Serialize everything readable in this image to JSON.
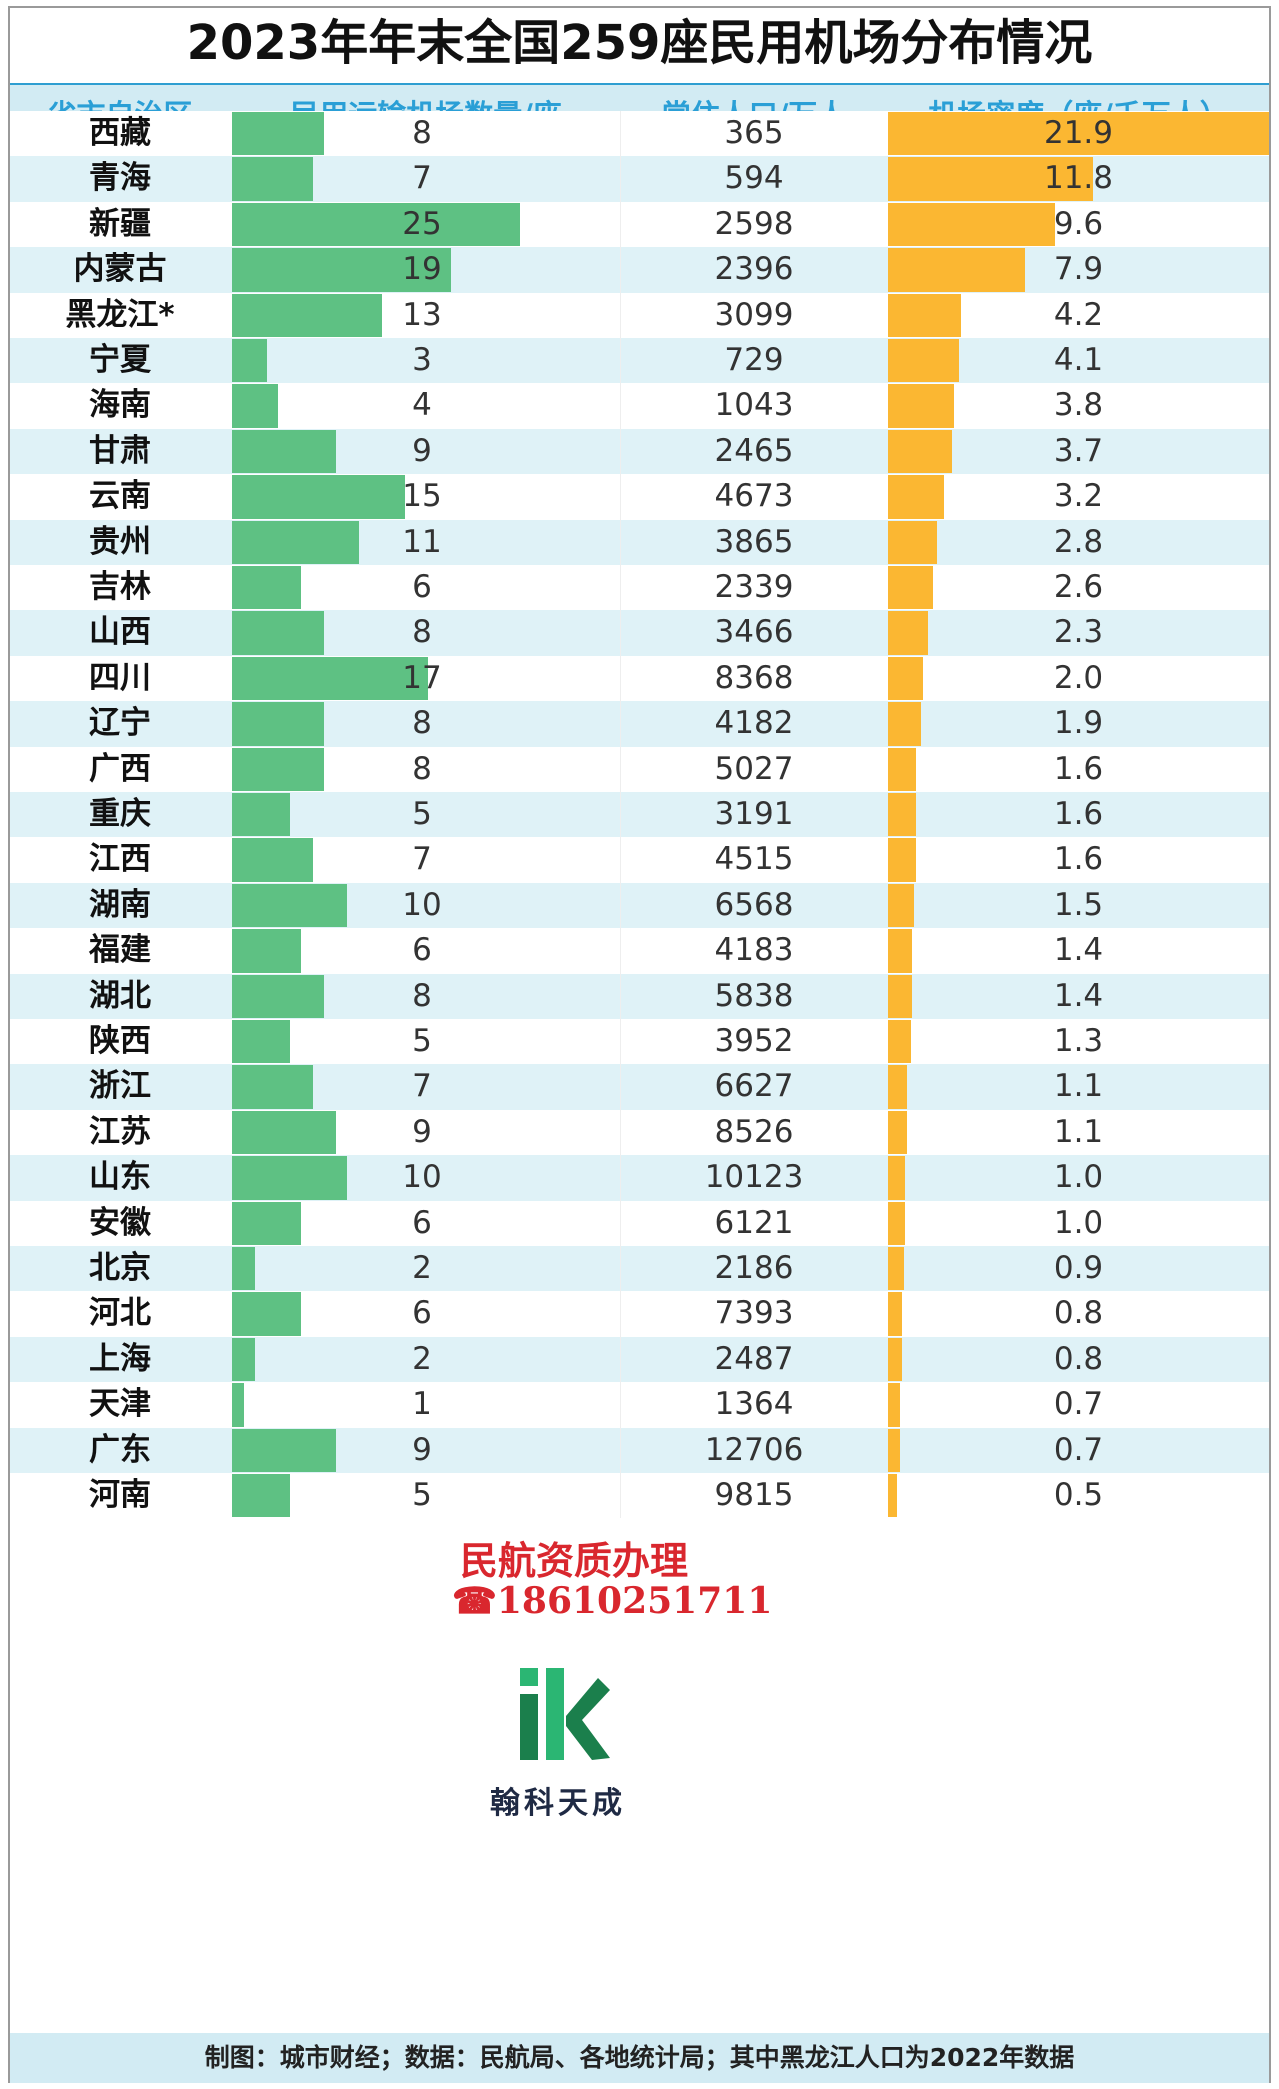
{
  "title": "2023年年末全国259座民用机场分布情况",
  "header": {
    "col1": "省市自治区",
    "col2": "民用运输机场数量/座",
    "col3": "常住人口/万人",
    "col4": "机场密度（座/千万人）"
  },
  "footer": "制图：城市财经；数据：民航局、各地统计局；其中黑龙江人口为2022年数据",
  "watermark": {
    "line1": "民航资质办理",
    "phone": "18610251711",
    "phone_icon": "phone-icon",
    "logo_text": "翰科天成"
  },
  "colors": {
    "green_bar": "#5ec183",
    "orange_bar": "#fbb732",
    "header_text": "#2a9fd6",
    "header_bg": "#d2ebf3",
    "row_alt_bg": "#dff2f7",
    "watermark_red": "#d9272e"
  },
  "chart_data": {
    "type": "table",
    "columns": [
      "省市自治区",
      "民用运输机场数量/座",
      "常住人口/万人",
      "机场密度（座/千万人）"
    ],
    "airport_count_max": 25,
    "density_max": 21.9,
    "rows": [
      {
        "province": "西藏",
        "airports": 8,
        "population": 365,
        "density": 21.9
      },
      {
        "province": "青海",
        "airports": 7,
        "population": 594,
        "density": 11.8
      },
      {
        "province": "新疆",
        "airports": 25,
        "population": 2598,
        "density": 9.6
      },
      {
        "province": "内蒙古",
        "airports": 19,
        "population": 2396,
        "density": 7.9
      },
      {
        "province": "黑龙江*",
        "airports": 13,
        "population": 3099,
        "density": 4.2
      },
      {
        "province": "宁夏",
        "airports": 3,
        "population": 729,
        "density": 4.1
      },
      {
        "province": "海南",
        "airports": 4,
        "population": 1043,
        "density": 3.8
      },
      {
        "province": "甘肃",
        "airports": 9,
        "population": 2465,
        "density": 3.7
      },
      {
        "province": "云南",
        "airports": 15,
        "population": 4673,
        "density": 3.2
      },
      {
        "province": "贵州",
        "airports": 11,
        "population": 3865,
        "density": 2.8
      },
      {
        "province": "吉林",
        "airports": 6,
        "population": 2339,
        "density": 2.6
      },
      {
        "province": "山西",
        "airports": 8,
        "population": 3466,
        "density": 2.3
      },
      {
        "province": "四川",
        "airports": 17,
        "population": 8368,
        "density": 2.0
      },
      {
        "province": "辽宁",
        "airports": 8,
        "population": 4182,
        "density": 1.9
      },
      {
        "province": "广西",
        "airports": 8,
        "population": 5027,
        "density": 1.6
      },
      {
        "province": "重庆",
        "airports": 5,
        "population": 3191,
        "density": 1.6
      },
      {
        "province": "江西",
        "airports": 7,
        "population": 4515,
        "density": 1.6
      },
      {
        "province": "湖南",
        "airports": 10,
        "population": 6568,
        "density": 1.5
      },
      {
        "province": "福建",
        "airports": 6,
        "population": 4183,
        "density": 1.4
      },
      {
        "province": "湖北",
        "airports": 8,
        "population": 5838,
        "density": 1.4
      },
      {
        "province": "陕西",
        "airports": 5,
        "population": 3952,
        "density": 1.3
      },
      {
        "province": "浙江",
        "airports": 7,
        "population": 6627,
        "density": 1.1
      },
      {
        "province": "江苏",
        "airports": 9,
        "population": 8526,
        "density": 1.1
      },
      {
        "province": "山东",
        "airports": 10,
        "population": 10123,
        "density": 1.0
      },
      {
        "province": "安徽",
        "airports": 6,
        "population": 6121,
        "density": 1.0
      },
      {
        "province": "北京",
        "airports": 2,
        "population": 2186,
        "density": 0.9
      },
      {
        "province": "河北",
        "airports": 6,
        "population": 7393,
        "density": 0.8
      },
      {
        "province": "上海",
        "airports": 2,
        "population": 2487,
        "density": 0.8
      },
      {
        "province": "天津",
        "airports": 1,
        "population": 1364,
        "density": 0.7
      },
      {
        "province": "广东",
        "airports": 9,
        "population": 12706,
        "density": 0.7
      },
      {
        "province": "河南",
        "airports": 5,
        "population": 9815,
        "density": 0.5
      }
    ]
  }
}
